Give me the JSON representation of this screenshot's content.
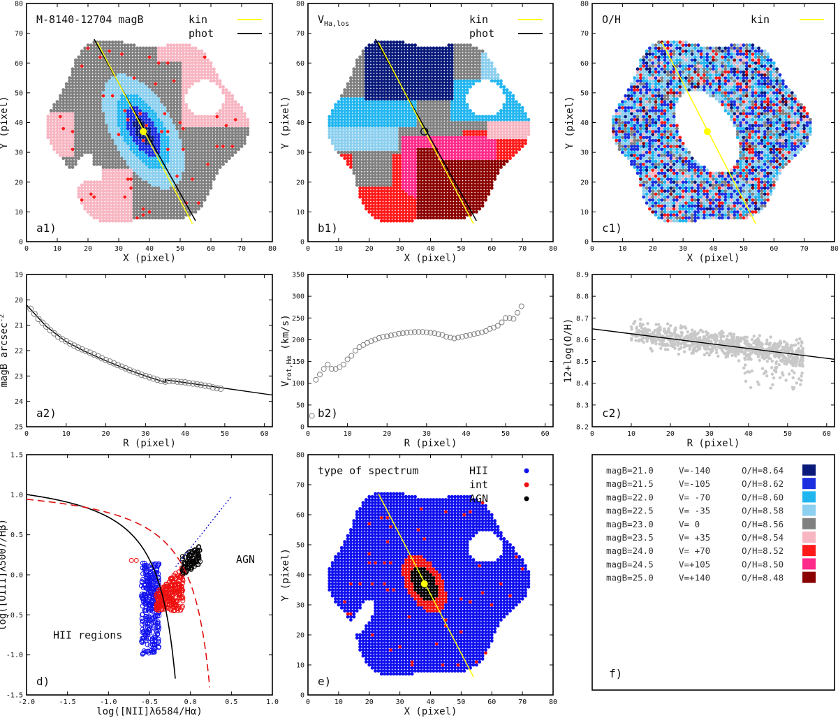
{
  "palette": {
    "c1": "#0a1a7a",
    "c2": "#1b2fe0",
    "c3": "#22b6f0",
    "c4": "#8ccfee",
    "c5": "#808080",
    "c6": "#f7b6c2",
    "c7": "#ff1a1a",
    "c8": "#ff2a8a",
    "c9": "#8b0000",
    "kin_line": "#ffff00",
    "phot_line": "#000000",
    "hii": "#1010ee",
    "int": "#ee1010",
    "agn": "#000000",
    "scatter_gray": "#c8c8c8",
    "points_gray": "#808080"
  },
  "chart_data": [
    {
      "id": "a1",
      "type": "scatter",
      "panel_label": "a1)",
      "title": "M-8140-12704  magB",
      "xlabel": "X  (pixel)",
      "ylabel": "Y  (pixel)",
      "xlim": [
        0,
        80
      ],
      "ylim": [
        0,
        80
      ],
      "xticks": [
        0,
        10,
        20,
        30,
        40,
        50,
        60,
        70,
        80
      ],
      "yticks": [
        0,
        10,
        20,
        30,
        40,
        50,
        60,
        70,
        80
      ],
      "legend": [
        {
          "label": "kin",
          "color": "#ffff00"
        },
        {
          "label": "phot",
          "color": "#000000"
        }
      ],
      "center": [
        38,
        37
      ],
      "kin_line": [
        [
          23,
          67
        ],
        [
          54,
          6
        ]
      ],
      "phot_line": [
        [
          22,
          68
        ],
        [
          55,
          7
        ]
      ]
    },
    {
      "id": "b1",
      "type": "scatter",
      "panel_label": "b1)",
      "title": "V",
      "title_sub": "Ha,los",
      "xlabel": "X  (pixel)",
      "ylabel": "Y  (pixel)",
      "xlim": [
        0,
        80
      ],
      "ylim": [
        0,
        80
      ],
      "xticks": [
        0,
        10,
        20,
        30,
        40,
        50,
        60,
        70,
        80
      ],
      "yticks": [
        0,
        10,
        20,
        30,
        40,
        50,
        60,
        70,
        80
      ],
      "legend": [
        {
          "label": "kin",
          "color": "#ffff00"
        },
        {
          "label": "phot",
          "color": "#000000"
        }
      ],
      "center": [
        38,
        37
      ],
      "kin_line": [
        [
          23,
          67
        ],
        [
          54,
          6
        ]
      ],
      "phot_line": [
        [
          22,
          68
        ],
        [
          55,
          7
        ]
      ]
    },
    {
      "id": "c1",
      "type": "scatter",
      "panel_label": "c1)",
      "title": "O/H",
      "xlabel": "X  (pixel)",
      "ylabel": "Y  (pixel)",
      "xlim": [
        0,
        80
      ],
      "ylim": [
        0,
        80
      ],
      "xticks": [
        0,
        10,
        20,
        30,
        40,
        50,
        60,
        70,
        80
      ],
      "yticks": [
        0,
        10,
        20,
        30,
        40,
        50,
        60,
        70,
        80
      ],
      "legend": [
        {
          "label": "kin",
          "color": "#ffff00"
        }
      ],
      "center": [
        38,
        37
      ],
      "kin_line": [
        [
          23,
          67
        ],
        [
          54,
          6
        ]
      ]
    },
    {
      "id": "a2",
      "type": "scatter",
      "panel_label": "a2)",
      "xlabel": "R  (pixel)",
      "ylabel": "magB arcsec",
      "ylabel_sup": "-2",
      "xlim": [
        0,
        62
      ],
      "ylim": [
        25,
        19
      ],
      "inverted_y": true,
      "xticks": [
        0,
        10,
        20,
        30,
        40,
        50,
        60
      ],
      "yticks": [
        19,
        20,
        21,
        22,
        23,
        24,
        25
      ],
      "x": [
        1,
        2,
        3,
        4,
        5,
        6,
        7,
        8,
        9,
        10,
        11,
        12,
        13,
        14,
        15,
        16,
        17,
        18,
        19,
        20,
        21,
        22,
        23,
        24,
        25,
        26,
        27,
        28,
        29,
        30,
        31,
        32,
        33,
        34,
        35,
        36,
        37,
        38,
        39,
        40,
        41,
        42,
        43,
        44,
        45,
        46,
        47,
        48,
        49
      ],
      "y": [
        20.35,
        20.55,
        20.75,
        20.9,
        21.05,
        21.2,
        21.32,
        21.45,
        21.55,
        21.63,
        21.72,
        21.8,
        21.88,
        21.95,
        22.02,
        22.08,
        22.15,
        22.22,
        22.3,
        22.37,
        22.43,
        22.5,
        22.57,
        22.63,
        22.7,
        22.77,
        22.83,
        22.88,
        22.95,
        23.0,
        23.05,
        23.1,
        23.15,
        23.2,
        23.22,
        23.2,
        23.2,
        23.22,
        23.24,
        23.25,
        23.28,
        23.3,
        23.32,
        23.35,
        23.38,
        23.4,
        23.45,
        23.48,
        23.5
      ],
      "fit": [
        [
          0,
          20.2
        ],
        [
          5,
          21.05
        ],
        [
          10,
          21.65
        ],
        [
          15,
          22.05
        ],
        [
          20,
          22.4
        ],
        [
          25,
          22.72
        ],
        [
          30,
          23.0
        ],
        [
          35,
          23.25
        ],
        [
          35,
          23.15
        ],
        [
          62,
          23.75
        ]
      ]
    },
    {
      "id": "b2",
      "type": "scatter",
      "panel_label": "b2)",
      "xlabel": "R  (pixel)",
      "ylabel": "V",
      "ylabel_sub": "rot,Hα",
      "ylabel_tail": " (km/s)",
      "xlim": [
        0,
        62
      ],
      "ylim": [
        0,
        350
      ],
      "xticks": [
        0,
        10,
        20,
        30,
        40,
        50,
        60
      ],
      "yticks": [
        0,
        50,
        100,
        150,
        200,
        250,
        300,
        350
      ],
      "x": [
        1,
        2,
        3,
        4,
        5,
        6,
        7,
        8,
        9,
        10,
        11,
        12,
        13,
        14,
        15,
        16,
        17,
        18,
        19,
        20,
        21,
        22,
        23,
        24,
        25,
        26,
        27,
        28,
        29,
        30,
        31,
        32,
        33,
        34,
        35,
        36,
        37,
        38,
        39,
        40,
        41,
        42,
        43,
        44,
        45,
        46,
        47,
        48,
        49,
        50,
        51,
        52,
        53,
        54
      ],
      "y": [
        25,
        108,
        120,
        133,
        143,
        133,
        133,
        137,
        143,
        155,
        163,
        175,
        183,
        188,
        193,
        197,
        200,
        204,
        207,
        208,
        210,
        212,
        214,
        215,
        216,
        217,
        218,
        218,
        218,
        217,
        216,
        215,
        213,
        211,
        207,
        205,
        203,
        205,
        207,
        209,
        211,
        213,
        215,
        217,
        220,
        225,
        228,
        232,
        240,
        250,
        250,
        248,
        262,
        277
      ]
    },
    {
      "id": "c2",
      "type": "scatter",
      "panel_label": "c2)",
      "xlabel": "R  (pixel)",
      "ylabel": "12+log(O/H)",
      "xlim": [
        0,
        62
      ],
      "ylim": [
        8.2,
        8.9
      ],
      "xticks": [
        0,
        10,
        20,
        30,
        40,
        50,
        60
      ],
      "yticks": [
        8.2,
        8.3,
        8.4,
        8.5,
        8.6,
        8.7,
        8.8,
        8.9
      ],
      "fit": [
        [
          0,
          8.65
        ],
        [
          62,
          8.51
        ]
      ],
      "cloud": {
        "x_range": [
          10,
          54
        ],
        "center_slope": -0.0023,
        "center_intercept": 8.652,
        "spread": 0.035
      }
    },
    {
      "id": "d",
      "type": "scatter",
      "panel_label": "d)",
      "xlabel": "log([NII]λ6584/Hα)",
      "ylabel": "log([OIII]λ5007/Hβ)",
      "xlim": [
        -2.0,
        1.0
      ],
      "ylim": [
        -1.5,
        1.5
      ],
      "xticks": [
        -2.0,
        -1.5,
        -1.0,
        -0.5,
        0.0,
        0.5,
        1.0
      ],
      "yticks": [
        -1.5,
        -1.0,
        -0.5,
        0.0,
        0.5,
        1.0,
        1.5
      ],
      "annotations": [
        "HII regions",
        "AGN"
      ],
      "kauffmann": {
        "a": 0.61,
        "b": 0.05,
        "c": 1.3,
        "xmax": -0.18
      },
      "kewley": {
        "a": 0.61,
        "b": 0.47,
        "c": 1.19,
        "xmax": 0.24
      },
      "dividing_line": [
        [
          -0.18,
          0.1
        ],
        [
          0.5,
          0.98
        ]
      ],
      "hii_cluster": {
        "x": [
          -0.6,
          -0.38
        ],
        "y": [
          -1.0,
          0.15
        ]
      },
      "int_cluster": {
        "x": [
          -0.42,
          -0.1
        ],
        "y": [
          -0.5,
          0.2
        ]
      },
      "agn_cluster": {
        "x": [
          -0.1,
          0.12
        ],
        "y": [
          0.0,
          0.38
        ]
      }
    },
    {
      "id": "e",
      "type": "scatter",
      "panel_label": "e)",
      "title": "type of spectrum",
      "xlabel": "X  (pixel)",
      "ylabel": "Y  (pixel)",
      "xlim": [
        0,
        80
      ],
      "ylim": [
        0,
        80
      ],
      "xticks": [
        0,
        10,
        20,
        30,
        40,
        50,
        60,
        70,
        80
      ],
      "yticks": [
        0,
        10,
        20,
        30,
        40,
        50,
        60,
        70,
        80
      ],
      "legend": [
        {
          "label": "HII",
          "color": "#1010ee"
        },
        {
          "label": "int",
          "color": "#ee1010"
        },
        {
          "label": "AGN",
          "color": "#000000"
        }
      ],
      "center": [
        38,
        37
      ],
      "kin_line": [
        [
          23,
          67
        ],
        [
          54,
          6
        ]
      ]
    }
  ],
  "legend_table": {
    "panel_label": "f)",
    "rows": [
      {
        "mag": "magB=21.0",
        "vel": "V=-140",
        "oh": "O/H=8.64",
        "color": "#0a1a7a"
      },
      {
        "mag": "magB=21.5",
        "vel": "V=-105",
        "oh": "O/H=8.62",
        "color": "#1b2fe0"
      },
      {
        "mag": "magB=22.0",
        "vel": "V= -70",
        "oh": "O/H=8.60",
        "color": "#22b6f0"
      },
      {
        "mag": "magB=22.5",
        "vel": "V= -35",
        "oh": "O/H=8.58",
        "color": "#8ccfee"
      },
      {
        "mag": "magB=23.0",
        "vel": "V=   0",
        "oh": "O/H=8.56",
        "color": "#808080"
      },
      {
        "mag": "magB=23.5",
        "vel": "V= +35",
        "oh": "O/H=8.54",
        "color": "#f7b6c2"
      },
      {
        "mag": "magB=24.0",
        "vel": "V= +70",
        "oh": "O/H=8.52",
        "color": "#ff1a1a"
      },
      {
        "mag": "magB=24.5",
        "vel": "V=+105",
        "oh": "O/H=8.50",
        "color": "#ff2a8a"
      },
      {
        "mag": "magB=25.0",
        "vel": "V=+140",
        "oh": "O/H=8.48",
        "color": "#8b0000"
      }
    ]
  }
}
